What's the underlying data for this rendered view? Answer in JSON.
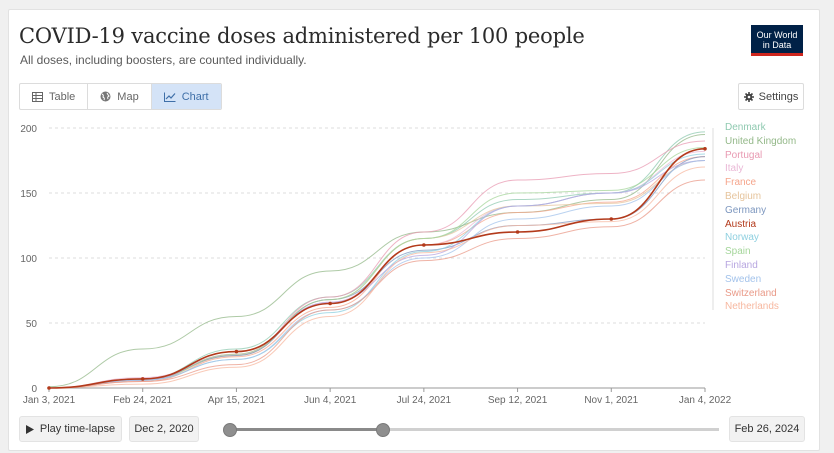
{
  "header": {
    "title": "COVID-19 vaccine doses administered per 100 people",
    "subtitle": "All doses, including boosters, are counted individually.",
    "logo_line1": "Our World",
    "logo_line2": "in Data"
  },
  "tabs": [
    {
      "label": "Table",
      "icon": "table-icon"
    },
    {
      "label": "Map",
      "icon": "globe-icon"
    },
    {
      "label": "Chart",
      "icon": "line-chart-icon",
      "active": true
    }
  ],
  "settings_label": "Settings",
  "timeline": {
    "play_label": "Play time-lapse",
    "start_date": "Dec 2, 2020",
    "end_date": "Feb 26, 2024"
  },
  "chart_data": {
    "type": "line",
    "title": "COVID-19 vaccine doses administered per 100 people",
    "xlabel": "",
    "ylabel": "",
    "ylim": [
      0,
      200
    ],
    "y_ticks": [
      0,
      50,
      100,
      150,
      200
    ],
    "x_ticks": [
      "Jan 3, 2021",
      "Feb 24, 2021",
      "Apr 15, 2021",
      "Jun 4, 2021",
      "Jul 24, 2021",
      "Sep 12, 2021",
      "Nov 1, 2021",
      "Jan 4, 2022"
    ],
    "x": [
      "Jan 3, 2021",
      "Feb 24, 2021",
      "Apr 15, 2021",
      "Jun 4, 2021",
      "Jul 24, 2021",
      "Sep 12, 2021",
      "Nov 1, 2021",
      "Jan 4, 2022"
    ],
    "highlighted": "Austria",
    "series": [
      {
        "name": "Denmark",
        "color": "#8fc9b0",
        "values": [
          0,
          7,
          30,
          70,
          115,
          145,
          150,
          197
        ]
      },
      {
        "name": "United Kingdom",
        "color": "#93b888",
        "values": [
          1,
          30,
          55,
          90,
          120,
          135,
          145,
          195
        ]
      },
      {
        "name": "Portugal",
        "color": "#e89ab2",
        "values": [
          0,
          6,
          26,
          70,
          120,
          160,
          165,
          190
        ]
      },
      {
        "name": "Italy",
        "color": "#eab8d6",
        "values": [
          0,
          8,
          26,
          66,
          110,
          140,
          150,
          182
        ]
      },
      {
        "name": "France",
        "color": "#f5a58c",
        "values": [
          0,
          5,
          24,
          62,
          110,
          135,
          143,
          178
        ]
      },
      {
        "name": "Belgium",
        "color": "#e6c49c",
        "values": [
          0,
          6,
          25,
          68,
          115,
          140,
          142,
          175
        ]
      },
      {
        "name": "Germany",
        "color": "#7d97bf",
        "values": [
          0,
          7,
          25,
          68,
          106,
          125,
          130,
          178
        ]
      },
      {
        "name": "Austria",
        "color": "#b33a1b",
        "values": [
          0,
          7,
          28,
          65,
          110,
          120,
          130,
          184
        ]
      },
      {
        "name": "Norway",
        "color": "#8fd0e0",
        "values": [
          0,
          6,
          22,
          58,
          105,
          140,
          150,
          180
        ]
      },
      {
        "name": "Spain",
        "color": "#a5d69b",
        "values": [
          0,
          6,
          26,
          68,
          115,
          150,
          152,
          185
        ]
      },
      {
        "name": "Finland",
        "color": "#b7a6e0",
        "values": [
          0,
          6,
          28,
          66,
          102,
          140,
          150,
          175
        ]
      },
      {
        "name": "Sweden",
        "color": "#a3c3eb",
        "values": [
          0,
          6,
          22,
          60,
          100,
          130,
          140,
          175
        ]
      },
      {
        "name": "Switzerland",
        "color": "#e99a88",
        "values": [
          0,
          5,
          18,
          60,
          98,
          115,
          124,
          160
        ]
      },
      {
        "name": "Netherlands",
        "color": "#f7b8a0",
        "values": [
          0,
          3,
          16,
          55,
          104,
          125,
          128,
          170
        ]
      }
    ]
  }
}
